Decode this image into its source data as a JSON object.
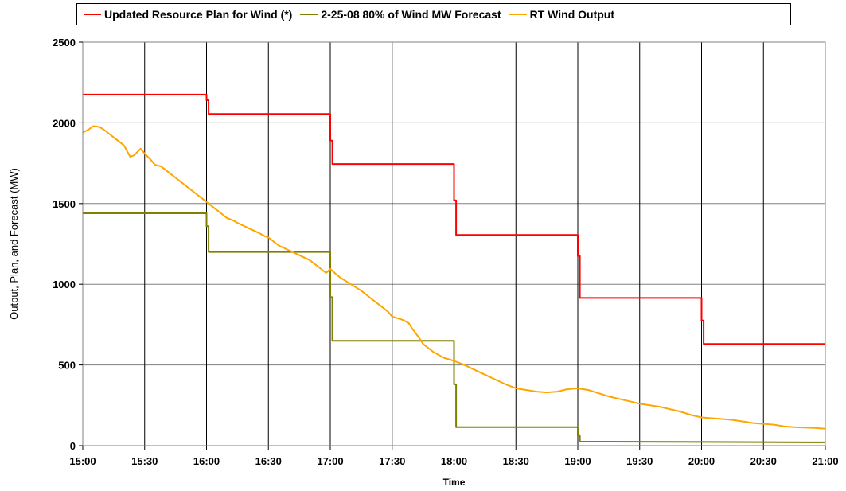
{
  "chart_data": {
    "type": "line",
    "xlabel": "Time",
    "ylabel": "Output, Plan, and Forecast (MW)",
    "ylim": [
      0,
      2500
    ],
    "xlim": [
      "15:00",
      "21:00"
    ],
    "x_ticks": [
      "15:00",
      "15:30",
      "16:00",
      "16:30",
      "17:00",
      "17:30",
      "18:00",
      "18:30",
      "19:00",
      "19:30",
      "20:00",
      "20:30",
      "21:00"
    ],
    "y_ticks": [
      "0",
      "500",
      "1000",
      "1500",
      "2000",
      "2500"
    ],
    "grid": true,
    "legend_position": "top",
    "series": [
      {
        "name": "Updated Resource Plan for Wind (*)",
        "color": "#ff0000",
        "style": "step",
        "points": [
          [
            "15:00",
            2175
          ],
          [
            "16:00",
            2175
          ],
          [
            "16:00",
            2140
          ],
          [
            "16:01",
            2140
          ],
          [
            "16:01",
            2055
          ],
          [
            "17:00",
            2055
          ],
          [
            "17:00",
            1890
          ],
          [
            "17:01",
            1890
          ],
          [
            "17:01",
            1745
          ],
          [
            "18:00",
            1745
          ],
          [
            "18:00",
            1520
          ],
          [
            "18:01",
            1520
          ],
          [
            "18:01",
            1305
          ],
          [
            "19:00",
            1305
          ],
          [
            "19:00",
            1175
          ],
          [
            "19:01",
            1175
          ],
          [
            "19:01",
            915
          ],
          [
            "20:00",
            915
          ],
          [
            "20:00",
            775
          ],
          [
            "20:01",
            775
          ],
          [
            "20:01",
            630
          ],
          [
            "21:00",
            630
          ]
        ]
      },
      {
        "name": "2-25-08 80% of Wind MW Forecast",
        "color": "#808000",
        "style": "step",
        "points": [
          [
            "15:00",
            1440
          ],
          [
            "16:00",
            1440
          ],
          [
            "16:00",
            1360
          ],
          [
            "16:01",
            1360
          ],
          [
            "16:01",
            1200
          ],
          [
            "17:00",
            1200
          ],
          [
            "17:00",
            920
          ],
          [
            "17:01",
            920
          ],
          [
            "17:01",
            650
          ],
          [
            "18:00",
            650
          ],
          [
            "18:00",
            380
          ],
          [
            "18:01",
            380
          ],
          [
            "18:01",
            115
          ],
          [
            "19:00",
            115
          ],
          [
            "19:00",
            60
          ],
          [
            "19:01",
            60
          ],
          [
            "19:01",
            25
          ],
          [
            "21:00",
            20
          ]
        ]
      },
      {
        "name": "RT Wind Output",
        "color": "#ffa500",
        "style": "line",
        "points": [
          [
            "15:00",
            1940
          ],
          [
            "15:03",
            1960
          ],
          [
            "15:05",
            1980
          ],
          [
            "15:08",
            1975
          ],
          [
            "15:10",
            1960
          ],
          [
            "15:12",
            1940
          ],
          [
            "15:15",
            1910
          ],
          [
            "15:18",
            1880
          ],
          [
            "15:20",
            1860
          ],
          [
            "15:23",
            1790
          ],
          [
            "15:25",
            1800
          ],
          [
            "15:28",
            1840
          ],
          [
            "15:30",
            1810
          ],
          [
            "15:33",
            1770
          ],
          [
            "15:35",
            1740
          ],
          [
            "15:38",
            1730
          ],
          [
            "15:40",
            1710
          ],
          [
            "15:43",
            1680
          ],
          [
            "15:45",
            1660
          ],
          [
            "15:48",
            1630
          ],
          [
            "15:50",
            1610
          ],
          [
            "15:53",
            1580
          ],
          [
            "15:55",
            1560
          ],
          [
            "15:58",
            1530
          ],
          [
            "16:00",
            1510
          ],
          [
            "16:03",
            1480
          ],
          [
            "16:05",
            1460
          ],
          [
            "16:08",
            1430
          ],
          [
            "16:10",
            1410
          ],
          [
            "16:13",
            1395
          ],
          [
            "16:15",
            1380
          ],
          [
            "16:20",
            1350
          ],
          [
            "16:25",
            1320
          ],
          [
            "16:28",
            1300
          ],
          [
            "16:30",
            1290
          ],
          [
            "16:33",
            1260
          ],
          [
            "16:35",
            1240
          ],
          [
            "16:40",
            1210
          ],
          [
            "16:45",
            1180
          ],
          [
            "16:50",
            1150
          ],
          [
            "16:55",
            1100
          ],
          [
            "16:58",
            1070
          ],
          [
            "17:00",
            1095
          ],
          [
            "17:03",
            1060
          ],
          [
            "17:05",
            1040
          ],
          [
            "17:10",
            1000
          ],
          [
            "17:15",
            960
          ],
          [
            "17:20",
            910
          ],
          [
            "17:25",
            860
          ],
          [
            "17:28",
            830
          ],
          [
            "17:30",
            800
          ],
          [
            "17:35",
            780
          ],
          [
            "17:38",
            760
          ],
          [
            "17:40",
            720
          ],
          [
            "17:43",
            670
          ],
          [
            "17:45",
            630
          ],
          [
            "17:50",
            580
          ],
          [
            "17:55",
            545
          ],
          [
            "18:00",
            525
          ],
          [
            "18:05",
            500
          ],
          [
            "18:10",
            470
          ],
          [
            "18:15",
            440
          ],
          [
            "18:20",
            410
          ],
          [
            "18:25",
            380
          ],
          [
            "18:30",
            355
          ],
          [
            "18:35",
            345
          ],
          [
            "18:40",
            335
          ],
          [
            "18:45",
            330
          ],
          [
            "18:50",
            335
          ],
          [
            "18:55",
            350
          ],
          [
            "19:00",
            355
          ],
          [
            "19:05",
            345
          ],
          [
            "19:10",
            325
          ],
          [
            "19:15",
            305
          ],
          [
            "19:20",
            290
          ],
          [
            "19:25",
            275
          ],
          [
            "19:30",
            260
          ],
          [
            "19:35",
            250
          ],
          [
            "19:40",
            240
          ],
          [
            "19:45",
            225
          ],
          [
            "19:50",
            210
          ],
          [
            "19:55",
            190
          ],
          [
            "20:00",
            175
          ],
          [
            "20:05",
            170
          ],
          [
            "20:10",
            165
          ],
          [
            "20:15",
            160
          ],
          [
            "20:20",
            150
          ],
          [
            "20:25",
            140
          ],
          [
            "20:30",
            135
          ],
          [
            "20:35",
            130
          ],
          [
            "20:40",
            120
          ],
          [
            "20:45",
            115
          ],
          [
            "20:50",
            112
          ],
          [
            "20:55",
            110
          ],
          [
            "21:00",
            105
          ]
        ]
      }
    ]
  }
}
